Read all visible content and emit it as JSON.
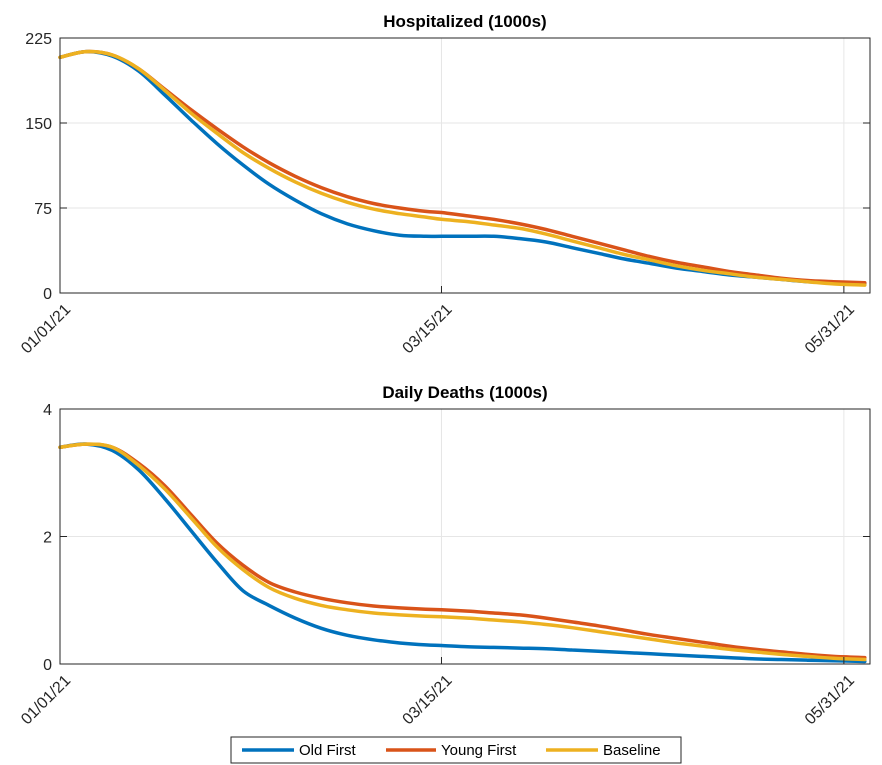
{
  "chart_data": [
    {
      "type": "line",
      "title": "Hospitalized (1000s)",
      "xlabel": "",
      "ylabel": "",
      "x_ticks": [
        "01/01/21",
        "03/15/21",
        "05/31/21"
      ],
      "x_tick_days": [
        0,
        73,
        150
      ],
      "xlim": [
        0,
        155
      ],
      "ylim": [
        0,
        225
      ],
      "y_ticks": [
        0,
        75,
        150,
        225
      ],
      "grid": true,
      "x": [
        "01/01/21",
        "01/06/21",
        "01/11/21",
        "01/16/21",
        "01/21/21",
        "01/26/21",
        "01/31/21",
        "02/05/21",
        "02/10/21",
        "02/15/21",
        "02/20/21",
        "02/25/21",
        "03/02/21",
        "03/07/21",
        "03/12/21",
        "03/15/21",
        "03/20/21",
        "03/25/21",
        "03/30/21",
        "04/04/21",
        "04/09/21",
        "04/14/21",
        "04/19/21",
        "04/24/21",
        "04/29/21",
        "05/04/21",
        "05/09/21",
        "05/14/21",
        "05/19/21",
        "05/24/21",
        "05/29/21",
        "06/04/21"
      ],
      "series": [
        {
          "name": "Old First",
          "color": "#0072BD",
          "values": [
            208,
            213,
            209,
            196,
            175,
            153,
            132,
            113,
            96,
            82,
            70,
            61,
            55,
            51,
            50,
            50,
            50,
            50,
            48,
            45,
            40,
            35,
            30,
            26,
            22,
            19,
            16,
            14,
            12,
            10,
            9,
            8
          ]
        },
        {
          "name": "Young First",
          "color": "#D95319",
          "values": [
            208,
            213,
            210,
            198,
            180,
            162,
            145,
            129,
            115,
            103,
            93,
            85,
            79,
            75,
            72,
            71,
            68,
            65,
            61,
            56,
            50,
            44,
            38,
            32,
            27,
            23,
            19,
            16,
            13,
            11,
            10,
            9
          ]
        },
        {
          "name": "Baseline",
          "color": "#EDB120",
          "values": [
            208,
            213,
            210,
            198,
            179,
            159,
            141,
            124,
            110,
            98,
            88,
            80,
            74,
            70,
            67,
            65,
            63,
            60,
            57,
            52,
            46,
            40,
            34,
            29,
            24,
            20,
            17,
            14,
            12,
            10,
            8,
            7
          ]
        }
      ]
    },
    {
      "type": "line",
      "title": "Daily Deaths (1000s)",
      "xlabel": "",
      "ylabel": "",
      "x_ticks": [
        "01/01/21",
        "03/15/21",
        "05/31/21"
      ],
      "x_tick_days": [
        0,
        73,
        150
      ],
      "xlim": [
        0,
        155
      ],
      "ylim": [
        0,
        4
      ],
      "y_ticks": [
        0,
        2,
        4
      ],
      "grid": true,
      "x": [
        "01/01/21",
        "01/06/21",
        "01/11/21",
        "01/16/21",
        "01/21/21",
        "01/26/21",
        "01/31/21",
        "02/05/21",
        "02/10/21",
        "02/15/21",
        "02/20/21",
        "02/25/21",
        "03/02/21",
        "03/07/21",
        "03/12/21",
        "03/15/21",
        "03/20/21",
        "03/25/21",
        "03/30/21",
        "04/04/21",
        "04/09/21",
        "04/14/21",
        "04/19/21",
        "04/24/21",
        "04/29/21",
        "05/04/21",
        "05/09/21",
        "05/14/21",
        "05/19/21",
        "05/24/21",
        "05/29/21",
        "06/04/21"
      ],
      "series": [
        {
          "name": "Old First",
          "color": "#0072BD",
          "values": [
            3.4,
            3.45,
            3.35,
            3.05,
            2.6,
            2.1,
            1.6,
            1.15,
            0.92,
            0.72,
            0.56,
            0.45,
            0.38,
            0.33,
            0.3,
            0.29,
            0.27,
            0.26,
            0.25,
            0.24,
            0.22,
            0.2,
            0.18,
            0.16,
            0.14,
            0.12,
            0.1,
            0.08,
            0.07,
            0.06,
            0.05,
            0.04
          ]
        },
        {
          "name": "Young First",
          "color": "#D95319",
          "values": [
            3.4,
            3.45,
            3.4,
            3.15,
            2.8,
            2.35,
            1.9,
            1.55,
            1.28,
            1.13,
            1.03,
            0.96,
            0.91,
            0.88,
            0.86,
            0.85,
            0.83,
            0.8,
            0.77,
            0.72,
            0.66,
            0.6,
            0.53,
            0.46,
            0.4,
            0.34,
            0.28,
            0.23,
            0.19,
            0.15,
            0.12,
            0.1
          ]
        },
        {
          "name": "Baseline",
          "color": "#EDB120",
          "values": [
            3.4,
            3.45,
            3.4,
            3.12,
            2.75,
            2.3,
            1.84,
            1.48,
            1.2,
            1.03,
            0.92,
            0.85,
            0.8,
            0.77,
            0.75,
            0.74,
            0.72,
            0.69,
            0.66,
            0.62,
            0.57,
            0.51,
            0.45,
            0.39,
            0.33,
            0.28,
            0.23,
            0.19,
            0.15,
            0.12,
            0.09,
            0.07
          ]
        }
      ]
    }
  ],
  "legend": {
    "placement": "bottom-center",
    "items": [
      {
        "label": "Old First",
        "color": "#0072BD"
      },
      {
        "label": "Young First",
        "color": "#D95319"
      },
      {
        "label": "Baseline",
        "color": "#EDB120"
      }
    ]
  }
}
